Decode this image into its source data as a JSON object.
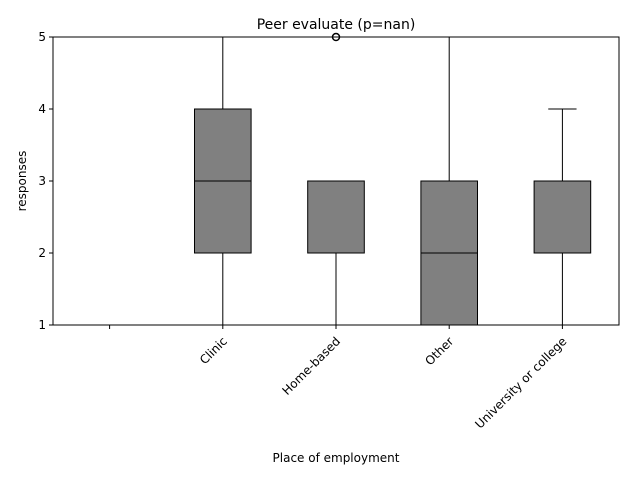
{
  "chart_data": {
    "type": "box",
    "title": "Peer evaluate (p=nan)",
    "xlabel": "Place of employment",
    "ylabel": "responses",
    "ylim": [
      1,
      5
    ],
    "yticks": [
      1,
      2,
      3,
      4,
      5
    ],
    "categories": [
      "",
      "Clinic",
      "Home-based",
      "Other",
      "University or college"
    ],
    "boxes": [
      null,
      {
        "whisker_low": 1,
        "q1": 2,
        "median": 3,
        "q3": 4,
        "whisker_high": 5,
        "outliers": []
      },
      {
        "whisker_low": 1,
        "q1": 2,
        "median": 2,
        "q3": 3,
        "whisker_high": 3,
        "outliers": [
          5
        ]
      },
      {
        "whisker_low": 1,
        "q1": 1,
        "median": 2,
        "q3": 3,
        "whisker_high": 5,
        "outliers": []
      },
      {
        "whisker_low": 1,
        "q1": 2,
        "median": 3,
        "q3": 3,
        "whisker_high": 4,
        "outliers": []
      }
    ],
    "grid": false,
    "box_color": "#808080",
    "line_color": "#000000"
  }
}
